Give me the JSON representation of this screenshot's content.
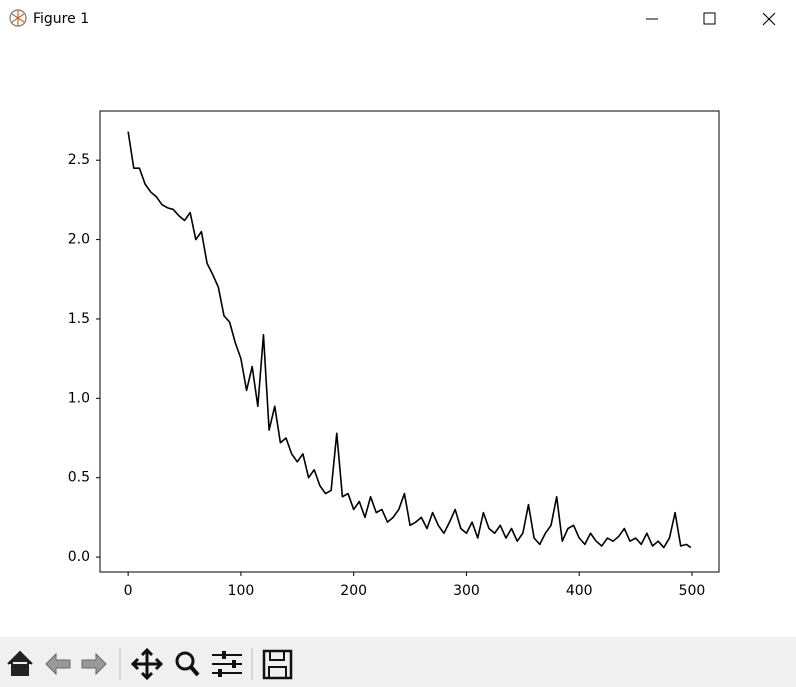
{
  "window": {
    "title": "Figure 1"
  },
  "chart_data": {
    "type": "line",
    "x": [
      0,
      5,
      10,
      15,
      20,
      25,
      30,
      35,
      40,
      45,
      50,
      55,
      60,
      65,
      70,
      75,
      80,
      85,
      90,
      95,
      100,
      105,
      110,
      115,
      120,
      125,
      130,
      135,
      140,
      145,
      150,
      155,
      160,
      165,
      170,
      175,
      180,
      185,
      190,
      195,
      200,
      205,
      210,
      215,
      220,
      225,
      230,
      235,
      240,
      245,
      250,
      255,
      260,
      265,
      270,
      275,
      280,
      285,
      290,
      295,
      300,
      305,
      310,
      315,
      320,
      325,
      330,
      335,
      340,
      345,
      350,
      355,
      360,
      365,
      370,
      375,
      380,
      385,
      390,
      395,
      400,
      405,
      410,
      415,
      420,
      425,
      430,
      435,
      440,
      445,
      450,
      455,
      460,
      465,
      470,
      475,
      480,
      485,
      490,
      495,
      499
    ],
    "values": [
      2.68,
      2.45,
      2.45,
      2.35,
      2.3,
      2.27,
      2.22,
      2.2,
      2.19,
      2.15,
      2.12,
      2.17,
      2.0,
      2.05,
      1.85,
      1.78,
      1.7,
      1.52,
      1.48,
      1.35,
      1.25,
      1.05,
      1.2,
      0.95,
      1.4,
      0.8,
      0.95,
      0.72,
      0.75,
      0.65,
      0.6,
      0.65,
      0.5,
      0.55,
      0.45,
      0.4,
      0.42,
      0.78,
      0.38,
      0.4,
      0.3,
      0.35,
      0.25,
      0.38,
      0.28,
      0.3,
      0.22,
      0.25,
      0.3,
      0.4,
      0.2,
      0.22,
      0.25,
      0.18,
      0.28,
      0.2,
      0.15,
      0.22,
      0.3,
      0.18,
      0.15,
      0.22,
      0.12,
      0.28,
      0.18,
      0.15,
      0.2,
      0.12,
      0.18,
      0.1,
      0.15,
      0.33,
      0.12,
      0.08,
      0.15,
      0.2,
      0.38,
      0.1,
      0.18,
      0.2,
      0.12,
      0.08,
      0.15,
      0.1,
      0.07,
      0.12,
      0.1,
      0.13,
      0.18,
      0.1,
      0.12,
      0.08,
      0.15,
      0.07,
      0.1,
      0.06,
      0.12,
      0.28,
      0.07,
      0.08,
      0.06
    ],
    "color": "#000000",
    "xlim": [
      -24.95,
      523.95
    ],
    "xticks": [
      0,
      100,
      200,
      300,
      400,
      500
    ],
    "ylim": [
      -0.094,
      2.81
    ],
    "yticks": [
      {
        "value": 0,
        "label": "0.0"
      },
      0.5,
      {
        "value": 1,
        "label": "1.0"
      },
      1.5,
      {
        "value": 2,
        "label": "2.0"
      },
      2.5
    ],
    "grid": false
  }
}
